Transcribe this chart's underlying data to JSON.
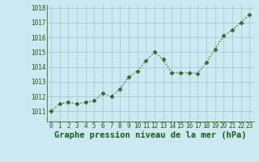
{
  "x": [
    0,
    1,
    2,
    3,
    4,
    5,
    6,
    7,
    8,
    9,
    10,
    11,
    12,
    13,
    14,
    15,
    16,
    17,
    18,
    19,
    20,
    21,
    22,
    23
  ],
  "y": [
    1011.0,
    1011.5,
    1011.6,
    1011.5,
    1011.6,
    1011.7,
    1012.2,
    1012.0,
    1012.5,
    1013.3,
    1013.7,
    1014.4,
    1015.0,
    1014.5,
    1013.6,
    1013.6,
    1013.6,
    1013.55,
    1014.3,
    1015.2,
    1016.1,
    1016.5,
    1017.0,
    1017.55
  ],
  "line_color": "#2a6e2a",
  "marker": "D",
  "marker_size": 2.5,
  "bg_color": "#cce8f0",
  "grid_color": "#a8c8d8",
  "xlabel": "Graphe pression niveau de la mer (hPa)",
  "xlabel_color": "#1a5c1a",
  "xlabel_fontsize": 7.5,
  "tick_color": "#1a5c1a",
  "ylim_min": 1010.3,
  "ylim_max": 1018.2,
  "yticks": [
    1011,
    1012,
    1013,
    1014,
    1015,
    1016,
    1017,
    1018
  ],
  "xticks": [
    0,
    1,
    2,
    3,
    4,
    5,
    6,
    7,
    8,
    9,
    10,
    11,
    12,
    13,
    14,
    15,
    16,
    17,
    18,
    19,
    20,
    21,
    22,
    23
  ],
  "tick_fontsize": 5.5,
  "linewidth": 1.0
}
